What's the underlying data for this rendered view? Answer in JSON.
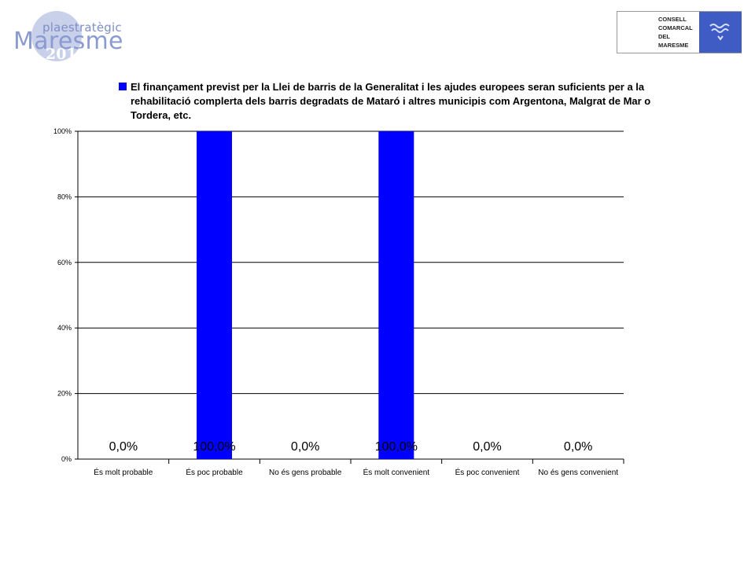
{
  "logo_left": {
    "small_text": "plaestratègic",
    "big_text": "Maresme",
    "year": "2015"
  },
  "logo_right": {
    "lines": [
      "CONSELL",
      "COMARCAL",
      "DEL",
      "MARESME"
    ],
    "emblem": "wave-emblem-icon"
  },
  "chart_data": {
    "type": "bar",
    "legend": "El finançament previst per la Llei de barris de la Generalitat i les ajudes europees seran suficients per a la rehabilitació complerta dels barris degradats de Mataró i altres municipis com Argentona, Malgrat de Mar o Tordera, etc.",
    "legend_position": "top",
    "categories": [
      "És molt probable",
      "És poc probable",
      "No és gens probable",
      "És molt convenient",
      "És poc convenient",
      "No és gens convenient"
    ],
    "values": [
      0,
      100,
      0,
      100,
      0,
      0
    ],
    "data_labels": [
      "0,0%",
      "100,0%",
      "0,0%",
      "100,0%",
      "0,0%",
      "0,0%"
    ],
    "yticks": [
      "0%",
      "20%",
      "40%",
      "60%",
      "80%",
      "100%"
    ],
    "ylim": [
      0,
      100
    ],
    "grid": true,
    "bar_color": "#0000ff"
  }
}
